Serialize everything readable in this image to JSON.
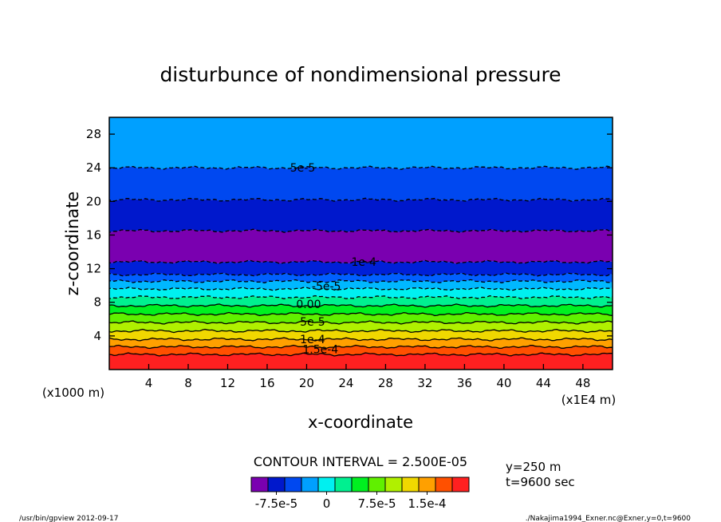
{
  "chart_data": {
    "type": "heatmap",
    "title": "disturbunce of nondimensional pressure",
    "xlabel": "x-coordinate",
    "ylabel": "z-coordinate",
    "xlim": [
      0,
      51
    ],
    "ylim": [
      0,
      30
    ],
    "x_ticks": [
      4,
      8,
      12,
      16,
      20,
      24,
      28,
      32,
      36,
      40,
      44,
      48
    ],
    "y_ticks": [
      4,
      8,
      12,
      16,
      20,
      24,
      28
    ],
    "x_scale_note": "(x1E4 m)",
    "y_scale_note": "(x1000 m)",
    "contour_interval_text": "CONTOUR INTERVAL = 2.500E-05",
    "info_lines": [
      "y=250 m",
      "t=9600 sec"
    ],
    "footer_left": "/usr/bin/gpview   2012-09-17",
    "footer_right": "./Nakajima1994_Exner.nc@Exner,y=0,t=9600",
    "bands": [
      {
        "z0": 0.0,
        "z1": 1.8,
        "color": "#ff2020"
      },
      {
        "z0": 1.8,
        "z1": 2.7,
        "color": "#ff5000"
      },
      {
        "z0": 2.7,
        "z1": 3.6,
        "color": "#ffa000"
      },
      {
        "z0": 3.6,
        "z1": 4.6,
        "color": "#f0d800"
      },
      {
        "z0": 4.6,
        "z1": 5.6,
        "color": "#b0f000"
      },
      {
        "z0": 5.6,
        "z1": 6.6,
        "color": "#60f000"
      },
      {
        "z0": 6.6,
        "z1": 7.6,
        "color": "#00f020"
      },
      {
        "z0": 7.6,
        "z1": 8.6,
        "color": "#00f090"
      },
      {
        "z0": 8.6,
        "z1": 9.6,
        "color": "#00f0f0"
      },
      {
        "z0": 9.6,
        "z1": 10.5,
        "color": "#00b8ff"
      },
      {
        "z0": 10.5,
        "z1": 11.3,
        "color": "#0060ff"
      },
      {
        "z0": 11.3,
        "z1": 12.8,
        "color": "#0020d8"
      },
      {
        "z0": 12.8,
        "z1": 16.5,
        "color": "#7a00b0"
      },
      {
        "z0": 16.5,
        "z1": 20.2,
        "color": "#0018cc"
      },
      {
        "z0": 20.2,
        "z1": 24.0,
        "color": "#0048f0"
      },
      {
        "z0": 24.0,
        "z1": 30.0,
        "color": "#00a0ff"
      }
    ],
    "contour_lines": [
      {
        "z": 1.8,
        "dashed": false
      },
      {
        "z": 2.7,
        "dashed": false
      },
      {
        "z": 3.6,
        "dashed": false
      },
      {
        "z": 4.6,
        "dashed": false
      },
      {
        "z": 5.6,
        "dashed": false
      },
      {
        "z": 6.6,
        "dashed": false
      },
      {
        "z": 7.6,
        "dashed": false
      },
      {
        "z": 8.6,
        "dashed": true
      },
      {
        "z": 9.6,
        "dashed": true
      },
      {
        "z": 10.5,
        "dashed": true
      },
      {
        "z": 11.3,
        "dashed": true
      },
      {
        "z": 12.8,
        "dashed": true
      },
      {
        "z": 16.5,
        "dashed": true
      },
      {
        "z": 20.2,
        "dashed": true
      },
      {
        "z": 24.0,
        "dashed": true
      }
    ],
    "contour_labels": [
      {
        "text": "5e-5",
        "x": 19.6,
        "z": 24.0
      },
      {
        "text": "1e-4",
        "x": 25.8,
        "z": 12.8
      },
      {
        "text": "-5e-5",
        "x": 22.0,
        "z": 9.9
      },
      {
        "text": "0.00",
        "x": 20.2,
        "z": 7.8
      },
      {
        "text": "5e-5",
        "x": 20.6,
        "z": 5.7
      },
      {
        "text": "1e-4",
        "x": 20.6,
        "z": 3.6
      },
      {
        "text": "1.5e-4",
        "x": 21.4,
        "z": 2.4
      }
    ],
    "colorbar": {
      "colors": [
        "#7a00b0",
        "#0018cc",
        "#0048f0",
        "#00a0ff",
        "#00f0f0",
        "#00f090",
        "#00f020",
        "#60f000",
        "#b0f000",
        "#f0d800",
        "#ffa000",
        "#ff5000",
        "#ff2020"
      ],
      "labels": [
        {
          "text": "-7.5e-5",
          "pos": 1.5
        },
        {
          "text": "0",
          "pos": 4.5
        },
        {
          "text": "7.5e-5",
          "pos": 7.5
        },
        {
          "text": "1.5e-4",
          "pos": 10.5
        }
      ]
    }
  }
}
